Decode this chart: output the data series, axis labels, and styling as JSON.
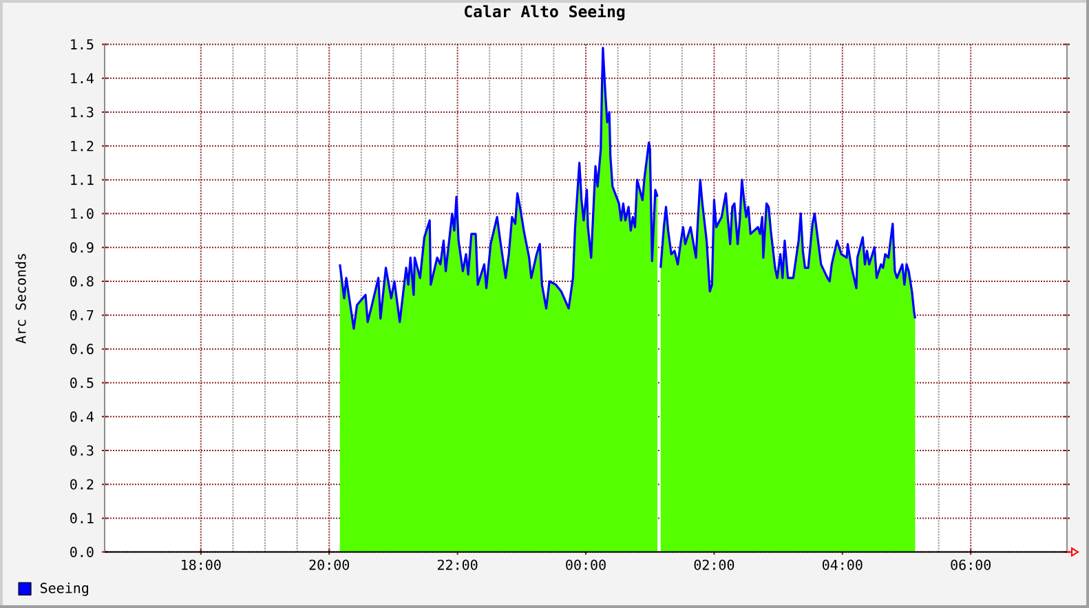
{
  "chart_data": {
    "type": "area",
    "title": "Calar Alto Seeing",
    "ylabel": "Arc Seconds",
    "x": [
      "2000-01-01T20:10",
      "2000-01-01T20:14",
      "2000-01-01T20:16",
      "2000-01-01T20:23",
      "2000-01-01T20:26",
      "2000-01-01T20:34",
      "2000-01-01T20:36",
      "2000-01-01T20:40",
      "2000-01-01T20:46",
      "2000-01-01T20:48",
      "2000-01-01T20:53",
      "2000-01-01T20:58",
      "2000-01-01T21:01",
      "2000-01-01T21:06",
      "2000-01-01T21:12",
      "2000-01-01T21:14",
      "2000-01-01T21:16",
      "2000-01-01T21:19",
      "2000-01-01T21:20",
      "2000-01-01T21:25",
      "2000-01-01T21:29",
      "2000-01-01T21:34",
      "2000-01-01T21:35",
      "2000-01-01T21:41",
      "2000-01-01T21:44",
      "2000-01-01T21:47",
      "2000-01-01T21:49",
      "2000-01-01T21:55",
      "2000-01-01T21:57",
      "2000-01-01T21:59",
      "2000-01-01T22:01",
      "2000-01-01T22:05",
      "2000-01-01T22:08",
      "2000-01-01T22:10",
      "2000-01-01T22:13",
      "2000-01-01T22:17",
      "2000-01-01T22:19",
      "2000-01-01T22:25",
      "2000-01-01T22:27",
      "2000-01-01T22:31",
      "2000-01-01T22:37",
      "2000-01-01T22:40",
      "2000-01-01T22:45",
      "2000-01-01T22:48",
      "2000-01-01T22:51",
      "2000-01-01T22:54",
      "2000-01-01T22:56",
      "2000-01-01T22:59",
      "2000-01-01T23:02",
      "2000-01-01T23:07",
      "2000-01-01T23:09",
      "2000-01-01T23:14",
      "2000-01-01T23:17",
      "2000-01-01T23:19",
      "2000-01-01T23:23",
      "2000-01-01T23:26",
      "2000-01-01T23:32",
      "2000-01-01T23:37",
      "2000-01-01T23:44",
      "2000-01-01T23:48",
      "2000-01-01T23:50",
      "2000-01-01T23:54",
      "2000-01-01T23:56",
      "2000-01-01T23:58",
      "2000-01-02T00:01",
      "2000-01-02T00:02",
      "2000-01-02T00:05",
      "2000-01-02T00:09",
      "2000-01-02T00:11",
      "2000-01-02T00:14",
      "2000-01-02T00:15",
      "2000-01-02T00:16",
      "2000-01-02T00:18",
      "2000-01-02T00:20",
      "2000-01-02T00:22",
      "2000-01-02T00:23",
      "2000-01-02T00:25",
      "2000-01-02T00:31",
      "2000-01-02T00:33",
      "2000-01-02T00:35",
      "2000-01-02T00:37",
      "2000-01-02T00:40",
      "2000-01-02T00:42",
      "2000-01-02T00:44",
      "2000-01-02T00:46",
      "2000-01-02T00:48",
      "2000-01-02T00:53",
      "2000-01-02T00:55",
      "2000-01-02T00:59",
      "2000-01-02T01:00",
      "2000-01-02T01:02",
      "2000-01-02T01:05",
      "2000-01-02T01:07",
      "2000-01-02T01:08",
      "2000-01-02T01:10",
      "2000-01-02T01:13",
      "2000-01-02T01:15",
      "2000-01-02T01:17",
      "2000-01-02T01:20",
      "2000-01-02T01:23",
      "2000-01-02T01:26",
      "2000-01-02T01:29",
      "2000-01-02T01:31",
      "2000-01-02T01:33",
      "2000-01-02T01:38",
      "2000-01-02T01:43",
      "2000-01-02T01:45",
      "2000-01-02T01:47",
      "2000-01-02T01:49",
      "2000-01-02T01:53",
      "2000-01-02T01:56",
      "2000-01-02T01:58",
      "2000-01-02T02:00",
      "2000-01-02T02:02",
      "2000-01-02T02:07",
      "2000-01-02T02:11",
      "2000-01-02T02:13",
      "2000-01-02T02:15",
      "2000-01-02T02:17",
      "2000-01-02T02:19",
      "2000-01-02T02:22",
      "2000-01-02T02:24",
      "2000-01-02T02:26",
      "2000-01-02T02:28",
      "2000-01-02T02:30",
      "2000-01-02T02:32",
      "2000-01-02T02:34",
      "2000-01-02T02:41",
      "2000-01-02T02:43",
      "2000-01-02T02:45",
      "2000-01-02T02:46",
      "2000-01-02T02:49",
      "2000-01-02T02:51",
      "2000-01-02T02:53",
      "2000-01-02T02:57",
      "2000-01-02T02:59",
      "2000-01-02T03:02",
      "2000-01-02T03:04",
      "2000-01-02T03:06",
      "2000-01-02T03:09",
      "2000-01-02T03:14",
      "2000-01-02T03:19",
      "2000-01-02T03:21",
      "2000-01-02T03:23",
      "2000-01-02T03:25",
      "2000-01-02T03:28",
      "2000-01-02T03:32",
      "2000-01-02T03:34",
      "2000-01-02T03:36",
      "2000-01-02T03:40",
      "2000-01-02T03:46",
      "2000-01-02T03:48",
      "2000-01-02T03:50",
      "2000-01-02T03:55",
      "2000-01-02T03:59",
      "2000-01-02T04:04",
      "2000-01-02T04:05",
      "2000-01-02T04:08",
      "2000-01-02T04:13",
      "2000-01-02T04:14",
      "2000-01-02T04:19",
      "2000-01-02T04:21",
      "2000-01-02T04:23",
      "2000-01-02T04:25",
      "2000-01-02T04:30",
      "2000-01-02T04:32",
      "2000-01-02T04:36",
      "2000-01-02T04:38",
      "2000-01-02T04:40",
      "2000-01-02T04:43",
      "2000-01-02T04:45",
      "2000-01-02T04:47",
      "2000-01-02T04:49",
      "2000-01-02T04:51",
      "2000-01-02T04:56",
      "2000-01-02T04:58",
      "2000-01-02T05:00",
      "2000-01-02T05:02",
      "2000-01-02T05:04",
      "2000-01-02T05:05",
      "2000-01-02T05:07",
      "2000-01-02T05:08"
    ],
    "series": [
      {
        "color": "#55ff00",
        "values": [
          0.85,
          0.75,
          0.81,
          0.66,
          0.73,
          0.76,
          0.68,
          0.73,
          0.81,
          0.69,
          0.84,
          0.75,
          0.8,
          0.68,
          0.84,
          0.79,
          0.87,
          0.76,
          0.87,
          0.81,
          0.93,
          0.98,
          0.79,
          0.87,
          0.85,
          0.92,
          0.83,
          1.0,
          0.95,
          1.05,
          0.92,
          0.83,
          0.88,
          0.82,
          0.94,
          0.94,
          0.79,
          0.85,
          0.78,
          0.91,
          0.99,
          0.92,
          0.81,
          0.88,
          0.99,
          0.97,
          1.06,
          1.01,
          0.95,
          0.87,
          0.81,
          0.88,
          0.91,
          0.79,
          0.72,
          0.8,
          0.79,
          0.77,
          0.72,
          0.81,
          0.96,
          1.15,
          1.04,
          0.98,
          1.07,
          0.96,
          0.87,
          1.14,
          1.08,
          1.19,
          1.36,
          1.49,
          1.37,
          1.27,
          1.3,
          1.17,
          1.08,
          1.03,
          0.98,
          1.03,
          0.98,
          1.02,
          0.95,
          0.99,
          0.96,
          1.1,
          1.04,
          1.11,
          1.21,
          1.19,
          0.86,
          1.07,
          1.05,
          null,
          0.84,
          0.96,
          1.02,
          0.95,
          0.88,
          0.89,
          0.85,
          0.92,
          0.96,
          0.91,
          0.96,
          0.87,
          0.99,
          1.1,
          1.03,
          0.92,
          0.77,
          0.79,
          1.04,
          0.96,
          0.99,
          1.06,
          0.98,
          0.91,
          1.02,
          1.03,
          0.91,
          0.98,
          1.1,
          1.04,
          0.99,
          1.02,
          0.94,
          0.96,
          0.94,
          0.99,
          0.87,
          1.03,
          1.02,
          0.95,
          0.84,
          0.81,
          0.88,
          0.81,
          0.92,
          0.81,
          0.81,
          0.92,
          1.0,
          0.89,
          0.84,
          0.84,
          0.97,
          1.0,
          0.95,
          0.85,
          0.81,
          0.8,
          0.85,
          0.92,
          0.88,
          0.87,
          0.91,
          0.85,
          0.78,
          0.87,
          0.93,
          0.85,
          0.89,
          0.85,
          0.9,
          0.81,
          0.85,
          0.84,
          0.88,
          0.87,
          0.92,
          0.97,
          0.83,
          0.81,
          0.85,
          0.79,
          0.85,
          0.83,
          0.79,
          0.77,
          0.71,
          0.69
        ]
      },
      {
        "type": "line",
        "name": "Seeing",
        "color": "#0000ff",
        "values": [
          0.85,
          0.75,
          0.81,
          0.66,
          0.73,
          0.76,
          0.68,
          0.73,
          0.81,
          0.69,
          0.84,
          0.75,
          0.8,
          0.68,
          0.84,
          0.79,
          0.87,
          0.76,
          0.87,
          0.81,
          0.93,
          0.98,
          0.79,
          0.87,
          0.85,
          0.92,
          0.83,
          1.0,
          0.95,
          1.05,
          0.92,
          0.83,
          0.88,
          0.82,
          0.94,
          0.94,
          0.79,
          0.85,
          0.78,
          0.91,
          0.99,
          0.92,
          0.81,
          0.88,
          0.99,
          0.97,
          1.06,
          1.01,
          0.95,
          0.87,
          0.81,
          0.88,
          0.91,
          0.79,
          0.72,
          0.8,
          0.79,
          0.77,
          0.72,
          0.81,
          0.96,
          1.15,
          1.04,
          0.98,
          1.07,
          0.96,
          0.87,
          1.14,
          1.08,
          1.19,
          1.36,
          1.49,
          1.37,
          1.27,
          1.3,
          1.17,
          1.08,
          1.03,
          0.98,
          1.03,
          0.98,
          1.02,
          0.95,
          0.99,
          0.96,
          1.1,
          1.04,
          1.11,
          1.21,
          1.19,
          0.86,
          1.07,
          1.05,
          null,
          0.84,
          0.96,
          1.02,
          0.95,
          0.88,
          0.89,
          0.85,
          0.92,
          0.96,
          0.91,
          0.96,
          0.87,
          0.99,
          1.1,
          1.03,
          0.92,
          0.77,
          0.79,
          1.04,
          0.96,
          0.99,
          1.06,
          0.98,
          0.91,
          1.02,
          1.03,
          0.91,
          0.98,
          1.1,
          1.04,
          0.99,
          1.02,
          0.94,
          0.96,
          0.94,
          0.99,
          0.87,
          1.03,
          1.02,
          0.95,
          0.84,
          0.81,
          0.88,
          0.81,
          0.92,
          0.81,
          0.81,
          0.92,
          1.0,
          0.89,
          0.84,
          0.84,
          0.97,
          1.0,
          0.95,
          0.85,
          0.81,
          0.8,
          0.85,
          0.92,
          0.88,
          0.87,
          0.91,
          0.85,
          0.78,
          0.87,
          0.93,
          0.85,
          0.89,
          0.85,
          0.9,
          0.81,
          0.85,
          0.84,
          0.88,
          0.87,
          0.92,
          0.97,
          0.83,
          0.81,
          0.85,
          0.79,
          0.85,
          0.83,
          0.79,
          0.77,
          0.71,
          0.69
        ]
      }
    ],
    "xlim": [
      "2000-01-01T16:30",
      "2000-01-02T07:30"
    ],
    "xticks": [
      {
        "value": "2000-01-01T18:00",
        "label": "18:00"
      },
      {
        "value": "2000-01-01T20:00",
        "label": "20:00"
      },
      {
        "value": "2000-01-01T22:00",
        "label": "22:00"
      },
      {
        "value": "2000-01-02T00:00",
        "label": "00:00"
      },
      {
        "value": "2000-01-02T02:00",
        "label": "02:00"
      },
      {
        "value": "2000-01-02T04:00",
        "label": "04:00"
      },
      {
        "value": "2000-01-02T06:00",
        "label": "06:00"
      }
    ],
    "ylim": [
      0,
      1.5
    ],
    "yticks": [
      {
        "value": 0,
        "label": "0.0"
      },
      0.1,
      0.2,
      0.3,
      0.4,
      0.5,
      0.6,
      0.7,
      0.8,
      0.9,
      {
        "value": 1,
        "label": "1.0"
      },
      1.1,
      1.2,
      1.3,
      1.4,
      1.5
    ],
    "grid": true,
    "legend": "bottom left"
  }
}
